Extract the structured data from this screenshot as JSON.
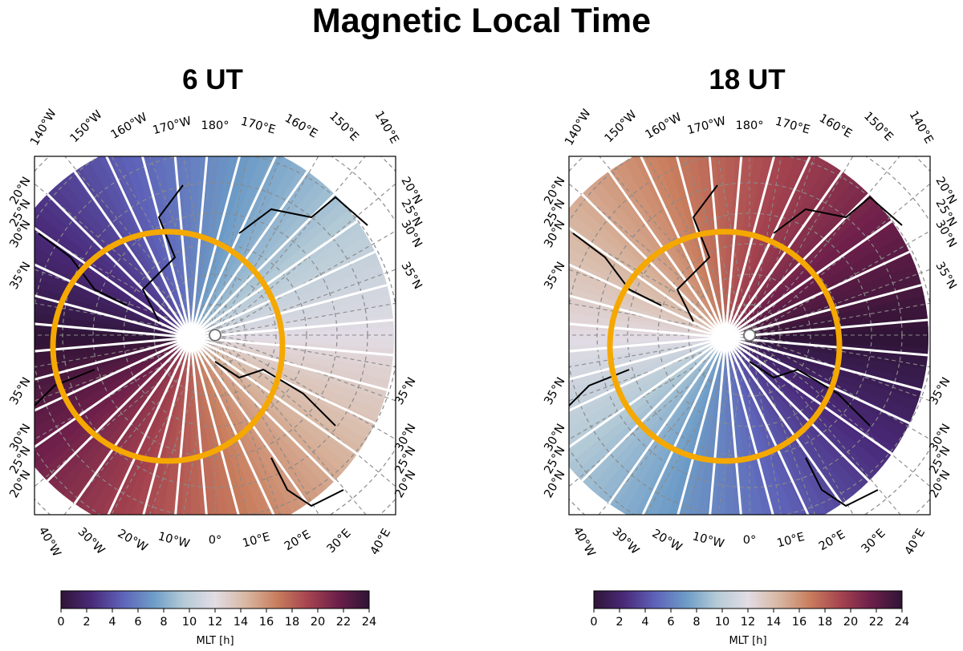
{
  "title": "Magnetic Local Time",
  "colors": {
    "ring": "#f5a800",
    "grid": "#8a8a8a",
    "meridian_lines": "#ffffff",
    "coast": "#000000",
    "colormap": "twilight_shifted",
    "colormap_stops": [
      "#2f1436",
      "#4a2a7a",
      "#5e63b9",
      "#6d9cc7",
      "#b5cbd7",
      "#e2dce4",
      "#d8b7a2",
      "#c97e5e",
      "#a6444f",
      "#6c1f4a",
      "#2f1436"
    ]
  },
  "chart_data": [
    {
      "type": "heatmap",
      "projection": "north polar stereographic",
      "title": "6 UT",
      "ut_hours": 6,
      "top_lon_labels": [
        "140°W",
        "150°W",
        "160°W",
        "170°W",
        "180°",
        "170°E",
        "160°E",
        "150°E",
        "140°E"
      ],
      "bottom_lon_labels": [
        "40°W",
        "30°W",
        "20°W",
        "10°W",
        "0°",
        "10°E",
        "20°E",
        "30°E",
        "40°E"
      ],
      "lat_labels_upper": [
        "20°N",
        "25°N",
        "30°N",
        "35°N"
      ],
      "lat_labels_lower": [
        "35°N",
        "30°N",
        "25°N",
        "20°N"
      ],
      "colorbar": {
        "label": "MLT [h]",
        "ticks": [
          "0",
          "2",
          "4",
          "6",
          "8",
          "10",
          "12",
          "14",
          "16",
          "18",
          "20",
          "22",
          "24"
        ],
        "range": [
          0,
          24
        ]
      },
      "meridian_lines": 36,
      "highlight_circle": "orange ring",
      "grid": true
    },
    {
      "type": "heatmap",
      "projection": "north polar stereographic",
      "title": "18 UT",
      "ut_hours": 18,
      "top_lon_labels": [
        "140°W",
        "150°W",
        "160°W",
        "170°W",
        "180°",
        "170°E",
        "160°E",
        "150°E",
        "140°E"
      ],
      "bottom_lon_labels": [
        "40°W",
        "30°W",
        "20°W",
        "10°W",
        "0°",
        "10°E",
        "20°E",
        "30°E",
        "40°E"
      ],
      "lat_labels_upper": [
        "20°N",
        "25°N",
        "30°N",
        "35°N"
      ],
      "lat_labels_lower": [
        "35°N",
        "30°N",
        "25°N",
        "20°N"
      ],
      "colorbar": {
        "label": "MLT [h]",
        "ticks": [
          "0",
          "2",
          "4",
          "6",
          "8",
          "10",
          "12",
          "14",
          "16",
          "18",
          "20",
          "22",
          "24"
        ],
        "range": [
          0,
          24
        ]
      },
      "meridian_lines": 36,
      "highlight_circle": "orange ring",
      "grid": true
    }
  ]
}
